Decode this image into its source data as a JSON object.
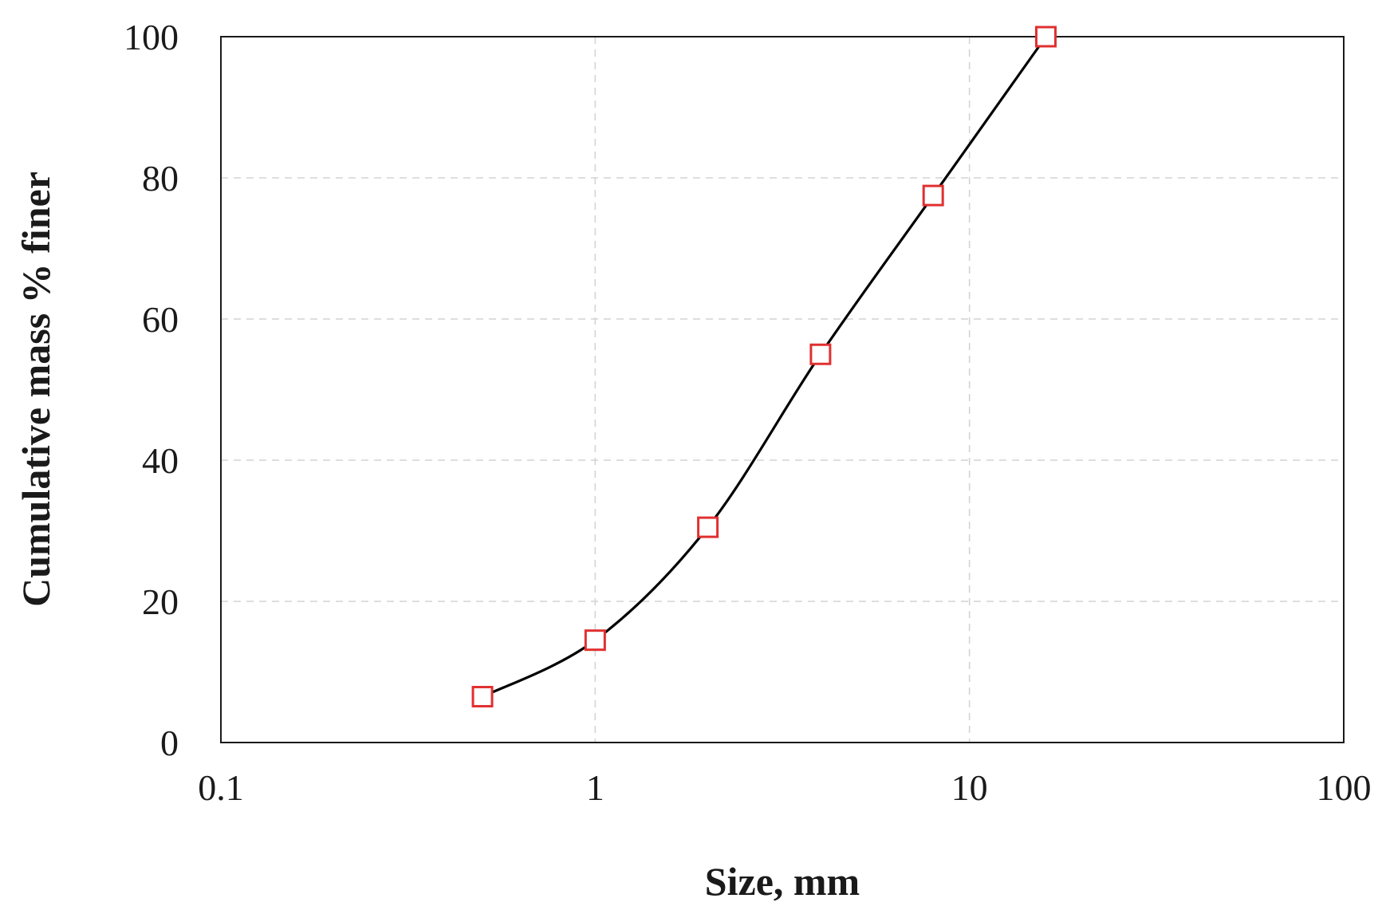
{
  "chart_data": {
    "type": "line",
    "title": "",
    "xlabel": "Size, mm",
    "ylabel": "Cumulative mass % finer",
    "xscale": "log",
    "xlim": [
      0.1,
      100
    ],
    "ylim": [
      0,
      100
    ],
    "xticks": [
      "0.1",
      "1",
      "10",
      "100"
    ],
    "yticks": [
      "0",
      "20",
      "40",
      "60",
      "80",
      "100"
    ],
    "grid": true,
    "legend": "none",
    "series": [
      {
        "x": [
          0.5,
          1,
          2,
          4,
          8,
          16
        ],
        "y": [
          6.5,
          14.5,
          30.5,
          55,
          77.5,
          100
        ],
        "line_color": "#000000",
        "marker": "square",
        "marker_color": "#e03030"
      }
    ]
  }
}
